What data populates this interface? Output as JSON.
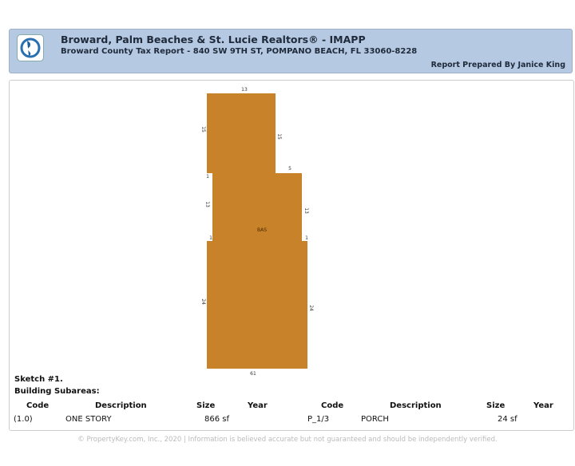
{
  "header": {
    "title": "Broward, Palm Beaches & St. Lucie Realtors® - IMAPP",
    "subtitle": "Broward County Tax Report - 840 SW 9TH ST, POMPANO BEACH, FL 33060-8228",
    "prepared_by": "Report Prepared By Janice King",
    "logo_icon": "globe-icon"
  },
  "sketch": {
    "fill_color": "#c8822a",
    "area_label": "BAS",
    "dimensions": {
      "top": "13",
      "left_upper": "15",
      "right_upper": "15",
      "left_step": "1",
      "step_top": "5",
      "left_mid": "13",
      "right_mid": "13",
      "left_notch": "1",
      "right_notch": "1",
      "left_lower": "24",
      "right_lower": "24",
      "bottom": "61"
    }
  },
  "sketch_title": "Sketch #1.",
  "subareas_label": "Building Subareas:",
  "table": {
    "headers": [
      "Code",
      "Description",
      "Size",
      "Year",
      "Code",
      "Description",
      "Size",
      "Year"
    ],
    "row": [
      "(1.0)",
      "ONE STORY",
      "866 sf",
      "",
      "P_1/3",
      "PORCH",
      "24 sf",
      ""
    ]
  },
  "footer": "© PropertyKey.com, Inc., 2020 | Information is believed accurate but not guaranteed and should be independently verified."
}
